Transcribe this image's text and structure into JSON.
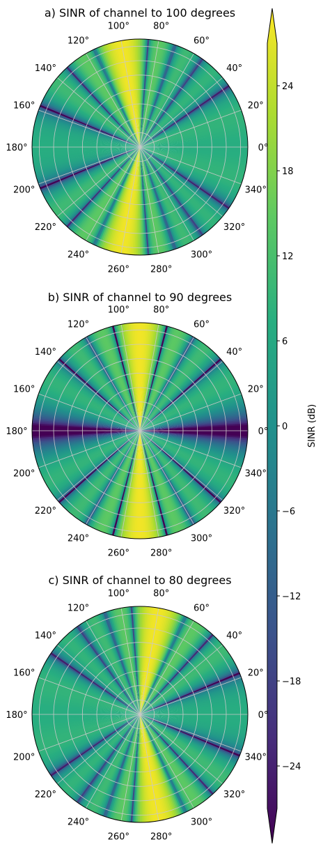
{
  "chart_data": [
    {
      "type": "heatmap",
      "projection": "polar",
      "title": "a) SINR of channel to 100 degrees",
      "angle_tick_labels": [
        "0°",
        "20°",
        "40°",
        "60°",
        "80°",
        "100°",
        "120°",
        "140°",
        "160°",
        "180°",
        "200°",
        "220°",
        "240°",
        "260°",
        "280°",
        "300°",
        "320°",
        "340°"
      ],
      "beam_direction_deg": 100,
      "grid": true,
      "colormap": "viridis"
    },
    {
      "type": "heatmap",
      "projection": "polar",
      "title": "b) SINR of channel to 90 degrees",
      "angle_tick_labels": [
        "0°",
        "20°",
        "40°",
        "60°",
        "80°",
        "100°",
        "120°",
        "140°",
        "160°",
        "180°",
        "200°",
        "220°",
        "240°",
        "260°",
        "280°",
        "300°",
        "320°",
        "340°"
      ],
      "beam_direction_deg": 90,
      "grid": true,
      "colormap": "viridis"
    },
    {
      "type": "heatmap",
      "projection": "polar",
      "title": "c) SINR of channel to 80 degrees",
      "angle_tick_labels": [
        "0°",
        "20°",
        "40°",
        "60°",
        "80°",
        "100°",
        "120°",
        "140°",
        "160°",
        "180°",
        "200°",
        "220°",
        "240°",
        "260°",
        "280°",
        "300°",
        "320°",
        "340°"
      ],
      "beam_direction_deg": 80,
      "grid": true,
      "colormap": "viridis"
    }
  ],
  "colorbar": {
    "label": "SINR (dB)",
    "ticks": [
      "24",
      "18",
      "12",
      "6",
      "0",
      "−6",
      "−12",
      "−18",
      "−24"
    ],
    "tick_values": [
      24,
      18,
      12,
      6,
      0,
      -6,
      -12,
      -18,
      -24
    ],
    "range": [
      -27,
      27
    ],
    "extend": "both"
  }
}
